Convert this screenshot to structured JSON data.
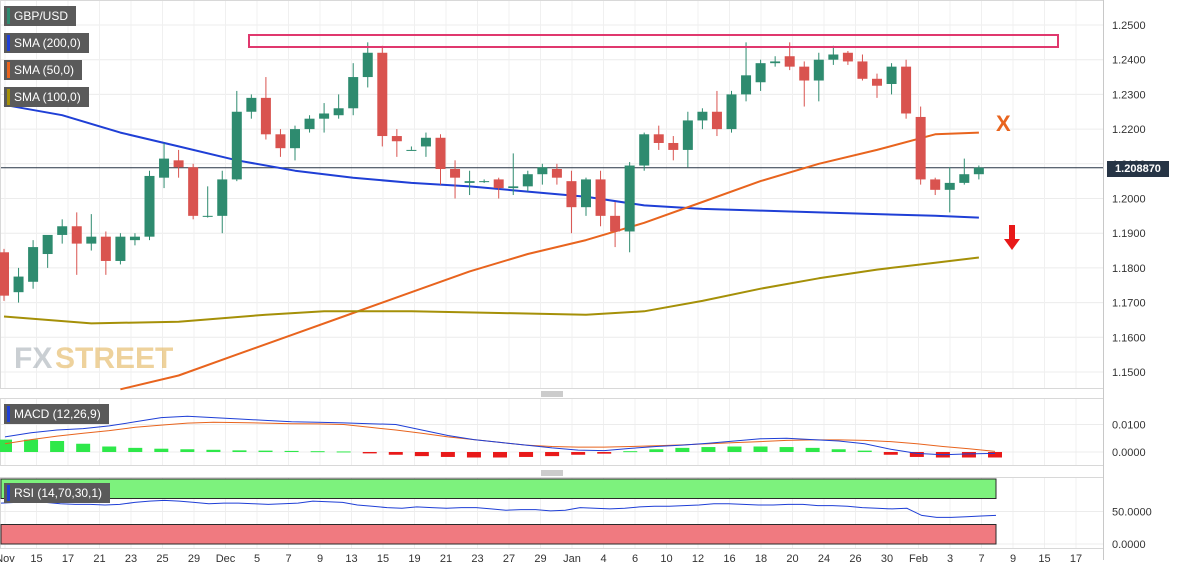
{
  "chart_data": [
    {
      "type": "candlestick",
      "title": "GBP/USD",
      "legend": [
        "GBP/USD",
        "SMA (200,0)",
        "SMA (50,0)",
        "SMA (100,0)"
      ],
      "ylim": [
        1.145,
        1.255
      ],
      "y_ticks": [
        "1.2500",
        "1.2400",
        "1.2300",
        "1.2200",
        "1.2100",
        "1.2000",
        "1.1900",
        "1.1800",
        "1.1700",
        "1.1600",
        "1.1500"
      ],
      "x_ticks": [
        "Nov",
        "15",
        "17",
        "21",
        "23",
        "25",
        "29",
        "Dec",
        "5",
        "7",
        "9",
        "13",
        "15",
        "19",
        "21",
        "23",
        "27",
        "29",
        "Jan",
        "4",
        "6",
        "10",
        "12",
        "16",
        "18",
        "20",
        "24",
        "26",
        "30",
        "Feb",
        "3",
        "7",
        "9",
        "15",
        "17"
      ],
      "last_price": "1.208870",
      "annotations": [
        "X"
      ],
      "ohlc": [
        {
          "o": 1.1845,
          "h": 1.1855,
          "l": 1.1705,
          "c": 1.172
        },
        {
          "o": 1.173,
          "h": 1.18,
          "l": 1.17,
          "c": 1.1775
        },
        {
          "o": 1.176,
          "h": 1.188,
          "l": 1.174,
          "c": 1.186
        },
        {
          "o": 1.184,
          "h": 1.189,
          "l": 1.18,
          "c": 1.1895
        },
        {
          "o": 1.1895,
          "h": 1.194,
          "l": 1.187,
          "c": 1.192
        },
        {
          "o": 1.192,
          "h": 1.196,
          "l": 1.178,
          "c": 1.187
        },
        {
          "o": 1.187,
          "h": 1.1955,
          "l": 1.185,
          "c": 1.189
        },
        {
          "o": 1.189,
          "h": 1.1905,
          "l": 1.178,
          "c": 1.182
        },
        {
          "o": 1.182,
          "h": 1.19,
          "l": 1.181,
          "c": 1.189
        },
        {
          "o": 1.188,
          "h": 1.19,
          "l": 1.1865,
          "c": 1.189
        },
        {
          "o": 1.189,
          "h": 1.208,
          "l": 1.188,
          "c": 1.2065
        },
        {
          "o": 1.206,
          "h": 1.216,
          "l": 1.203,
          "c": 1.2115
        },
        {
          "o": 1.211,
          "h": 1.214,
          "l": 1.206,
          "c": 1.209
        },
        {
          "o": 1.209,
          "h": 1.21,
          "l": 1.194,
          "c": 1.195
        },
        {
          "o": 1.195,
          "h": 1.2035,
          "l": 1.1945,
          "c": 1.195
        },
        {
          "o": 1.195,
          "h": 1.208,
          "l": 1.19,
          "c": 1.2055
        },
        {
          "o": 1.2055,
          "h": 1.231,
          "l": 1.205,
          "c": 1.225
        },
        {
          "o": 1.225,
          "h": 1.23,
          "l": 1.223,
          "c": 1.229
        },
        {
          "o": 1.229,
          "h": 1.235,
          "l": 1.217,
          "c": 1.2185
        },
        {
          "o": 1.2185,
          "h": 1.22,
          "l": 1.212,
          "c": 1.2145
        },
        {
          "o": 1.2145,
          "h": 1.221,
          "l": 1.211,
          "c": 1.22
        },
        {
          "o": 1.22,
          "h": 1.224,
          "l": 1.219,
          "c": 1.223
        },
        {
          "o": 1.223,
          "h": 1.2275,
          "l": 1.219,
          "c": 1.2245
        },
        {
          "o": 1.224,
          "h": 1.23,
          "l": 1.223,
          "c": 1.226
        },
        {
          "o": 1.226,
          "h": 1.239,
          "l": 1.224,
          "c": 1.235
        },
        {
          "o": 1.235,
          "h": 1.245,
          "l": 1.232,
          "c": 1.242
        },
        {
          "o": 1.242,
          "h": 1.244,
          "l": 1.215,
          "c": 1.218
        },
        {
          "o": 1.218,
          "h": 1.22,
          "l": 1.212,
          "c": 1.2165
        },
        {
          "o": 1.214,
          "h": 1.215,
          "l": 1.214,
          "c": 1.214
        },
        {
          "o": 1.215,
          "h": 1.219,
          "l": 1.212,
          "c": 1.2175
        },
        {
          "o": 1.2175,
          "h": 1.2185,
          "l": 1.204,
          "c": 1.2085
        },
        {
          "o": 1.2085,
          "h": 1.211,
          "l": 1.2,
          "c": 1.206
        },
        {
          "o": 1.2045,
          "h": 1.208,
          "l": 1.201,
          "c": 1.205
        },
        {
          "o": 1.205,
          "h": 1.2055,
          "l": 1.2045,
          "c": 1.205
        },
        {
          "o": 1.2055,
          "h": 1.206,
          "l": 1.2,
          "c": 1.203
        },
        {
          "o": 1.203,
          "h": 1.213,
          "l": 1.201,
          "c": 1.2035
        },
        {
          "o": 1.2035,
          "h": 1.208,
          "l": 1.202,
          "c": 1.207
        },
        {
          "o": 1.207,
          "h": 1.21,
          "l": 1.204,
          "c": 1.209
        },
        {
          "o": 1.2085,
          "h": 1.21,
          "l": 1.204,
          "c": 1.206
        },
        {
          "o": 1.205,
          "h": 1.208,
          "l": 1.19,
          "c": 1.1975
        },
        {
          "o": 1.1975,
          "h": 1.206,
          "l": 1.195,
          "c": 1.2055
        },
        {
          "o": 1.2055,
          "h": 1.208,
          "l": 1.192,
          "c": 1.195
        },
        {
          "o": 1.195,
          "h": 1.199,
          "l": 1.186,
          "c": 1.1905
        },
        {
          "o": 1.1905,
          "h": 1.2105,
          "l": 1.1845,
          "c": 1.2095
        },
        {
          "o": 1.2095,
          "h": 1.219,
          "l": 1.208,
          "c": 1.2185
        },
        {
          "o": 1.2185,
          "h": 1.221,
          "l": 1.214,
          "c": 1.216
        },
        {
          "o": 1.216,
          "h": 1.218,
          "l": 1.211,
          "c": 1.214
        },
        {
          "o": 1.214,
          "h": 1.225,
          "l": 1.209,
          "c": 1.2225
        },
        {
          "o": 1.2225,
          "h": 1.226,
          "l": 1.22,
          "c": 1.225
        },
        {
          "o": 1.225,
          "h": 1.231,
          "l": 1.218,
          "c": 1.22
        },
        {
          "o": 1.22,
          "h": 1.231,
          "l": 1.219,
          "c": 1.23
        },
        {
          "o": 1.23,
          "h": 1.245,
          "l": 1.228,
          "c": 1.2355
        },
        {
          "o": 1.2335,
          "h": 1.24,
          "l": 1.231,
          "c": 1.239
        },
        {
          "o": 1.239,
          "h": 1.241,
          "l": 1.238,
          "c": 1.2395
        },
        {
          "o": 1.241,
          "h": 1.245,
          "l": 1.237,
          "c": 1.238
        },
        {
          "o": 1.238,
          "h": 1.2395,
          "l": 1.2265,
          "c": 1.234
        },
        {
          "o": 1.234,
          "h": 1.242,
          "l": 1.228,
          "c": 1.24
        },
        {
          "o": 1.24,
          "h": 1.244,
          "l": 1.2385,
          "c": 1.2415
        },
        {
          "o": 1.242,
          "h": 1.2425,
          "l": 1.2385,
          "c": 1.2395
        },
        {
          "o": 1.2395,
          "h": 1.2415,
          "l": 1.234,
          "c": 1.2345
        },
        {
          "o": 1.2345,
          "h": 1.236,
          "l": 1.229,
          "c": 1.2325
        },
        {
          "o": 1.233,
          "h": 1.239,
          "l": 1.23,
          "c": 1.238
        },
        {
          "o": 1.238,
          "h": 1.24,
          "l": 1.223,
          "c": 1.2245
        },
        {
          "o": 1.2235,
          "h": 1.2265,
          "l": 1.204,
          "c": 1.2055
        },
        {
          "o": 1.2055,
          "h": 1.206,
          "l": 1.201,
          "c": 1.2025
        },
        {
          "o": 1.2025,
          "h": 1.209,
          "l": 1.196,
          "c": 1.2045
        },
        {
          "o": 1.2045,
          "h": 1.2115,
          "l": 1.204,
          "c": 1.207
        },
        {
          "o": 1.207,
          "h": 1.2095,
          "l": 1.2055,
          "c": 1.2089
        }
      ],
      "series": [
        {
          "name": "SMA (200,0)",
          "color": "#1f3fd6",
          "points": [
            [
              0,
              1.227
            ],
            [
              4,
              1.224
            ],
            [
              8,
              1.219
            ],
            [
              12,
              1.215
            ],
            [
              16,
              1.211
            ],
            [
              20,
              1.208
            ],
            [
              24,
              1.206
            ],
            [
              28,
              1.2045
            ],
            [
              32,
              1.2035
            ],
            [
              36,
              1.202
            ],
            [
              40,
              1.2005
            ],
            [
              44,
              1.198
            ],
            [
              48,
              1.197
            ],
            [
              52,
              1.1965
            ],
            [
              56,
              1.196
            ],
            [
              60,
              1.1955
            ],
            [
              64,
              1.195
            ],
            [
              67,
              1.1945
            ]
          ]
        },
        {
          "name": "SMA (50,0)",
          "color": "#e8641e",
          "points": [
            [
              8,
              1.145
            ],
            [
              12,
              1.149
            ],
            [
              16,
              1.155
            ],
            [
              20,
              1.161
            ],
            [
              24,
              1.167
            ],
            [
              28,
              1.173
            ],
            [
              32,
              1.179
            ],
            [
              36,
              1.184
            ],
            [
              40,
              1.188
            ],
            [
              44,
              1.193
            ],
            [
              48,
              1.199
            ],
            [
              52,
              1.205
            ],
            [
              56,
              1.21
            ],
            [
              60,
              1.214
            ],
            [
              64,
              1.2185
            ],
            [
              67,
              1.219
            ]
          ]
        },
        {
          "name": "SMA (100,0)",
          "color": "#a59008",
          "points": [
            [
              0,
              1.166
            ],
            [
              6,
              1.164
            ],
            [
              12,
              1.1645
            ],
            [
              18,
              1.1665
            ],
            [
              22,
              1.1675
            ],
            [
              28,
              1.1675
            ],
            [
              34,
              1.167
            ],
            [
              40,
              1.1665
            ],
            [
              44,
              1.1675
            ],
            [
              48,
              1.1705
            ],
            [
              52,
              1.174
            ],
            [
              56,
              1.177
            ],
            [
              60,
              1.1795
            ],
            [
              64,
              1.1815
            ],
            [
              67,
              1.183
            ]
          ]
        }
      ]
    },
    {
      "type": "bar",
      "title": "MACD (12,26,9)",
      "y_ticks": [
        "0.0100",
        "0.0000"
      ],
      "macd_line": [
        0.0055,
        0.007,
        0.008,
        0.0085,
        0.0095,
        0.011,
        0.0125,
        0.013,
        0.0125,
        0.012,
        0.0115,
        0.011,
        0.0108,
        0.0106,
        0.0103,
        0.01,
        0.008,
        0.006,
        0.0045,
        0.0035,
        0.0025,
        0.0015,
        0.0007,
        0.0005,
        0.0013,
        0.002,
        0.0025,
        0.0032,
        0.004,
        0.0048,
        0.005,
        0.0045,
        0.004,
        0.003,
        0.001,
        -0.0005,
        -0.001,
        -0.0007,
        -0.0005
      ],
      "signal_line": [
        0.003,
        0.0045,
        0.0058,
        0.0068,
        0.0078,
        0.009,
        0.0098,
        0.0105,
        0.0108,
        0.0107,
        0.0105,
        0.0103,
        0.0102,
        0.01,
        0.009,
        0.008,
        0.0068,
        0.0055,
        0.0045,
        0.0035,
        0.0025,
        0.002,
        0.0018,
        0.0018,
        0.002,
        0.0023,
        0.0026,
        0.003,
        0.0034,
        0.0038,
        0.0042,
        0.0044,
        0.0044,
        0.0042,
        0.0038,
        0.003,
        0.002,
        0.0012,
        0.0002
      ],
      "histogram": [
        0.0045,
        0.0045,
        0.004,
        0.003,
        0.002,
        0.0015,
        0.0012,
        0.001,
        0.0008,
        0.0006,
        0.0005,
        0.0004,
        0.0003,
        0.0002,
        -0.0005,
        -0.001,
        -0.0015,
        -0.0018,
        -0.002,
        -0.002,
        -0.0018,
        -0.0015,
        -0.001,
        -0.0006,
        0.0003,
        0.001,
        0.0015,
        0.0018,
        0.002,
        0.002,
        0.0018,
        0.0015,
        0.001,
        0.0005,
        -0.001,
        -0.0018,
        -0.002,
        -0.002,
        -0.002
      ]
    },
    {
      "type": "line",
      "title": "RSI (14,70,30,1)",
      "y_ticks": [
        "50.0000",
        "0.0000"
      ],
      "overbought": 70,
      "oversold": 30,
      "values": [
        63,
        64,
        65,
        64,
        62,
        61,
        61,
        60,
        61,
        64,
        66,
        67,
        66,
        64,
        62,
        63,
        63,
        62,
        61,
        62,
        63,
        66,
        65,
        64,
        60,
        58,
        56,
        55,
        57,
        56,
        55,
        56,
        56,
        54,
        52,
        53,
        53,
        51,
        52,
        56,
        55,
        54,
        55,
        57,
        58,
        58,
        59,
        60,
        62,
        62,
        61,
        60,
        60,
        61,
        61,
        59,
        59,
        58,
        56,
        55,
        54,
        55,
        44,
        41,
        41,
        42,
        43,
        44
      ]
    }
  ]
}
